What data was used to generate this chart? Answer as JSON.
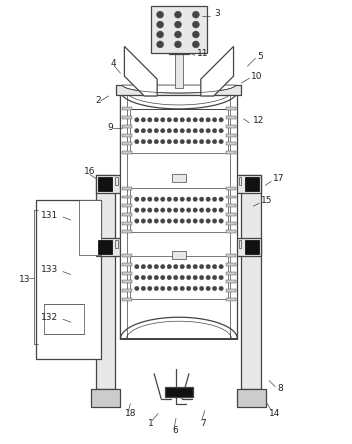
{
  "bg_color": "#ffffff",
  "line_color": "#444444",
  "dark_color": "#222222",
  "fill_light": "#e8e8e8",
  "fill_dark": "#cccccc",
  "lw_main": 0.9,
  "lw_thin": 0.5,
  "lw_thick": 1.4
}
